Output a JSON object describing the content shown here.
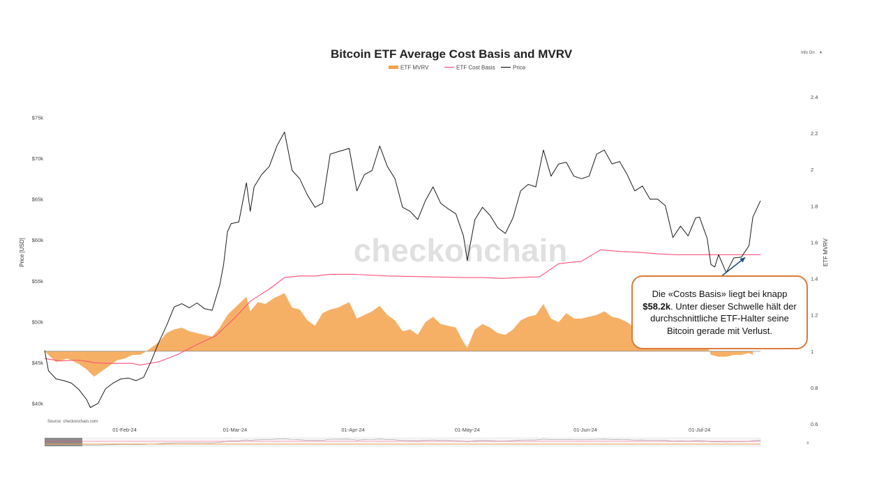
{
  "chart_data": {
    "type": "line",
    "title": "Bitcoin ETF Average Cost Basis and MVRV",
    "legend": {
      "placement": "top-center",
      "entries": [
        {
          "name": "ETF MVRV",
          "color": "#f5a24b"
        },
        {
          "name": "ETF Cost Basis",
          "color": "#ff4f79"
        },
        {
          "name": "Price",
          "color": "#1a1a1a"
        }
      ]
    },
    "menu_label": "Info On",
    "watermark": "checkonchain",
    "source": "Source: checkonchain.com",
    "x_axis": {
      "type": "date",
      "range": [
        "2024-01-11",
        "2024-07-17"
      ],
      "ticks": [
        {
          "date": "2024-02-01",
          "label": "01-Feb-24"
        },
        {
          "date": "2024-03-01",
          "label": "01-Mar-24"
        },
        {
          "date": "2024-04-01",
          "label": "01-Apr-24"
        },
        {
          "date": "2024-05-01",
          "label": "01-May-24"
        },
        {
          "date": "2024-06-01",
          "label": "01-Jun-24"
        },
        {
          "date": "2024-07-01",
          "label": "01-Jul-24"
        }
      ]
    },
    "y_left": {
      "label": "Price [USD]",
      "range": [
        37500,
        77500
      ],
      "ticks": [
        {
          "value": 40000,
          "label": "$40k"
        },
        {
          "value": 45000,
          "label": "$45k"
        },
        {
          "value": 50000,
          "label": "$50k"
        },
        {
          "value": 55000,
          "label": "$55k"
        },
        {
          "value": 60000,
          "label": "$60k"
        },
        {
          "value": 65000,
          "label": "$65k"
        },
        {
          "value": 70000,
          "label": "$70k"
        },
        {
          "value": 75000,
          "label": "$75k"
        }
      ]
    },
    "y_right": {
      "label": "ETF MVRV",
      "range": [
        0.6,
        2.4
      ],
      "ticks": [
        {
          "value": 0.6,
          "label": "0.6"
        },
        {
          "value": 0.8,
          "label": "0.8"
        },
        {
          "value": 1.0,
          "label": "1"
        },
        {
          "value": 1.2,
          "label": "1.2"
        },
        {
          "value": 1.4,
          "label": "1.4"
        },
        {
          "value": 1.6,
          "label": "1.6"
        },
        {
          "value": 1.8,
          "label": "1.8"
        },
        {
          "value": 2.0,
          "label": "2"
        },
        {
          "value": 2.2,
          "label": "2.2"
        },
        {
          "value": 2.4,
          "label": "2.4"
        }
      ]
    },
    "series": [
      {
        "name": "Price",
        "axis": "left",
        "points": [
          [
            "2024-01-11",
            46500
          ],
          [
            "2024-01-12",
            44000
          ],
          [
            "2024-01-14",
            43000
          ],
          [
            "2024-01-16",
            42800
          ],
          [
            "2024-01-18",
            42500
          ],
          [
            "2024-01-20",
            41700
          ],
          [
            "2024-01-22",
            40500
          ],
          [
            "2024-01-23",
            39500
          ],
          [
            "2024-01-25",
            40000
          ],
          [
            "2024-01-27",
            41800
          ],
          [
            "2024-01-29",
            42500
          ],
          [
            "2024-01-31",
            43000
          ],
          [
            "2024-02-02",
            43100
          ],
          [
            "2024-02-04",
            42800
          ],
          [
            "2024-02-06",
            43200
          ],
          [
            "2024-02-08",
            45200
          ],
          [
            "2024-02-10",
            47500
          ],
          [
            "2024-02-12",
            49500
          ],
          [
            "2024-02-14",
            51800
          ],
          [
            "2024-02-16",
            52200
          ],
          [
            "2024-02-18",
            51700
          ],
          [
            "2024-02-20",
            52300
          ],
          [
            "2024-02-22",
            51600
          ],
          [
            "2024-02-24",
            51400
          ],
          [
            "2024-02-26",
            54500
          ],
          [
            "2024-02-27",
            57000
          ],
          [
            "2024-02-28",
            61000
          ],
          [
            "2024-02-29",
            62000
          ],
          [
            "2024-03-02",
            62200
          ],
          [
            "2024-03-04",
            67000
          ],
          [
            "2024-03-05",
            63500
          ],
          [
            "2024-03-06",
            66500
          ],
          [
            "2024-03-08",
            68000
          ],
          [
            "2024-03-10",
            69000
          ],
          [
            "2024-03-12",
            71500
          ],
          [
            "2024-03-14",
            73200
          ],
          [
            "2024-03-16",
            68500
          ],
          [
            "2024-03-18",
            67500
          ],
          [
            "2024-03-20",
            65500
          ],
          [
            "2024-03-22",
            64000
          ],
          [
            "2024-03-24",
            64500
          ],
          [
            "2024-03-26",
            70500
          ],
          [
            "2024-03-28",
            70800
          ],
          [
            "2024-03-31",
            71200
          ],
          [
            "2024-04-02",
            66000
          ],
          [
            "2024-04-04",
            68000
          ],
          [
            "2024-04-06",
            68500
          ],
          [
            "2024-04-08",
            71500
          ],
          [
            "2024-04-10",
            69000
          ],
          [
            "2024-04-12",
            67500
          ],
          [
            "2024-04-14",
            64000
          ],
          [
            "2024-04-16",
            63500
          ],
          [
            "2024-04-18",
            62500
          ],
          [
            "2024-04-20",
            64800
          ],
          [
            "2024-04-22",
            66500
          ],
          [
            "2024-04-24",
            64500
          ],
          [
            "2024-04-26",
            63800
          ],
          [
            "2024-04-28",
            63200
          ],
          [
            "2024-04-30",
            60500
          ],
          [
            "2024-05-01",
            57500
          ],
          [
            "2024-05-03",
            62500
          ],
          [
            "2024-05-05",
            64000
          ],
          [
            "2024-05-07",
            63000
          ],
          [
            "2024-05-09",
            61500
          ],
          [
            "2024-05-11",
            60800
          ],
          [
            "2024-05-13",
            62700
          ],
          [
            "2024-05-15",
            66000
          ],
          [
            "2024-05-17",
            66800
          ],
          [
            "2024-05-19",
            66500
          ],
          [
            "2024-05-21",
            71000
          ],
          [
            "2024-05-23",
            67800
          ],
          [
            "2024-05-25",
            69300
          ],
          [
            "2024-05-27",
            69500
          ],
          [
            "2024-05-29",
            67800
          ],
          [
            "2024-05-31",
            67500
          ],
          [
            "2024-06-02",
            67800
          ],
          [
            "2024-06-04",
            70500
          ],
          [
            "2024-06-06",
            71000
          ],
          [
            "2024-06-08",
            69300
          ],
          [
            "2024-06-10",
            69600
          ],
          [
            "2024-06-12",
            68000
          ],
          [
            "2024-06-14",
            66000
          ],
          [
            "2024-06-16",
            66600
          ],
          [
            "2024-06-18",
            65000
          ],
          [
            "2024-06-20",
            65000
          ],
          [
            "2024-06-22",
            64200
          ],
          [
            "2024-06-24",
            60300
          ],
          [
            "2024-06-26",
            61700
          ],
          [
            "2024-06-28",
            60500
          ],
          [
            "2024-06-30",
            62700
          ],
          [
            "2024-07-01",
            62800
          ],
          [
            "2024-07-03",
            60200
          ],
          [
            "2024-07-04",
            57000
          ],
          [
            "2024-07-05",
            56700
          ],
          [
            "2024-07-06",
            58200
          ],
          [
            "2024-07-08",
            56000
          ],
          [
            "2024-07-10",
            57800
          ],
          [
            "2024-07-12",
            57900
          ],
          [
            "2024-07-14",
            59300
          ],
          [
            "2024-07-15",
            62800
          ],
          [
            "2024-07-17",
            64800
          ]
        ]
      },
      {
        "name": "ETF Cost Basis",
        "axis": "left",
        "points": [
          [
            "2024-01-11",
            45500
          ],
          [
            "2024-01-15",
            45200
          ],
          [
            "2024-01-20",
            45300
          ],
          [
            "2024-01-24",
            45000
          ],
          [
            "2024-01-27",
            44900
          ],
          [
            "2024-02-03",
            44900
          ],
          [
            "2024-02-05",
            44700
          ],
          [
            "2024-02-10",
            45100
          ],
          [
            "2024-02-15",
            46000
          ],
          [
            "2024-02-20",
            47200
          ],
          [
            "2024-02-25",
            48300
          ],
          [
            "2024-03-01",
            50500
          ],
          [
            "2024-03-05",
            52500
          ],
          [
            "2024-03-10",
            54000
          ],
          [
            "2024-03-14",
            55400
          ],
          [
            "2024-03-18",
            55600
          ],
          [
            "2024-03-22",
            55600
          ],
          [
            "2024-03-26",
            55800
          ],
          [
            "2024-04-01",
            55800
          ],
          [
            "2024-04-10",
            55600
          ],
          [
            "2024-04-20",
            55500
          ],
          [
            "2024-04-30",
            55400
          ],
          [
            "2024-05-05",
            55400
          ],
          [
            "2024-05-10",
            55300
          ],
          [
            "2024-05-15",
            55400
          ],
          [
            "2024-05-20",
            55500
          ],
          [
            "2024-05-25",
            57100
          ],
          [
            "2024-05-31",
            57400
          ],
          [
            "2024-06-05",
            58800
          ],
          [
            "2024-06-10",
            58600
          ],
          [
            "2024-06-15",
            58500
          ],
          [
            "2024-06-20",
            58300
          ],
          [
            "2024-06-25",
            58200
          ],
          [
            "2024-07-01",
            58200
          ],
          [
            "2024-07-10",
            58200
          ],
          [
            "2024-07-17",
            58200
          ]
        ]
      },
      {
        "name": "ETF MVRV",
        "axis": "right",
        "points": [
          [
            "2024-01-11",
            1.0
          ],
          [
            "2024-01-14",
            0.94
          ],
          [
            "2024-01-17",
            0.96
          ],
          [
            "2024-01-20",
            0.93
          ],
          [
            "2024-01-22",
            0.9
          ],
          [
            "2024-01-24",
            0.86
          ],
          [
            "2024-01-26",
            0.89
          ],
          [
            "2024-01-28",
            0.92
          ],
          [
            "2024-01-30",
            0.95
          ],
          [
            "2024-02-01",
            0.96
          ],
          [
            "2024-02-03",
            0.98
          ],
          [
            "2024-02-05",
            0.98
          ],
          [
            "2024-02-06",
            0.99
          ],
          [
            "2024-02-08",
            1.02
          ],
          [
            "2024-02-10",
            1.05
          ],
          [
            "2024-02-12",
            1.1
          ],
          [
            "2024-02-14",
            1.12
          ],
          [
            "2024-02-16",
            1.13
          ],
          [
            "2024-02-18",
            1.11
          ],
          [
            "2024-02-20",
            1.1
          ],
          [
            "2024-02-22",
            1.09
          ],
          [
            "2024-02-24",
            1.08
          ],
          [
            "2024-02-26",
            1.13
          ],
          [
            "2024-02-28",
            1.2
          ],
          [
            "2024-03-01",
            1.24
          ],
          [
            "2024-03-04",
            1.3
          ],
          [
            "2024-03-05",
            1.22
          ],
          [
            "2024-03-07",
            1.27
          ],
          [
            "2024-03-09",
            1.26
          ],
          [
            "2024-03-11",
            1.29
          ],
          [
            "2024-03-14",
            1.32
          ],
          [
            "2024-03-16",
            1.24
          ],
          [
            "2024-03-18",
            1.23
          ],
          [
            "2024-03-20",
            1.17
          ],
          [
            "2024-03-22",
            1.14
          ],
          [
            "2024-03-24",
            1.21
          ],
          [
            "2024-03-26",
            1.23
          ],
          [
            "2024-03-28",
            1.24
          ],
          [
            "2024-03-31",
            1.27
          ],
          [
            "2024-04-02",
            1.18
          ],
          [
            "2024-04-04",
            1.2
          ],
          [
            "2024-04-06",
            1.22
          ],
          [
            "2024-04-08",
            1.25
          ],
          [
            "2024-04-10",
            1.2
          ],
          [
            "2024-04-12",
            1.17
          ],
          [
            "2024-04-14",
            1.11
          ],
          [
            "2024-04-16",
            1.12
          ],
          [
            "2024-04-18",
            1.09
          ],
          [
            "2024-04-20",
            1.16
          ],
          [
            "2024-04-22",
            1.19
          ],
          [
            "2024-04-24",
            1.15
          ],
          [
            "2024-04-26",
            1.14
          ],
          [
            "2024-04-28",
            1.13
          ],
          [
            "2024-04-30",
            1.05
          ],
          [
            "2024-05-01",
            1.02
          ],
          [
            "2024-05-03",
            1.12
          ],
          [
            "2024-05-05",
            1.15
          ],
          [
            "2024-05-07",
            1.13
          ],
          [
            "2024-05-09",
            1.1
          ],
          [
            "2024-05-11",
            1.09
          ],
          [
            "2024-05-13",
            1.12
          ],
          [
            "2024-05-15",
            1.17
          ],
          [
            "2024-05-17",
            1.19
          ],
          [
            "2024-05-19",
            1.2
          ],
          [
            "2024-05-21",
            1.26
          ],
          [
            "2024-05-23",
            1.18
          ],
          [
            "2024-05-25",
            1.16
          ],
          [
            "2024-05-27",
            1.21
          ],
          [
            "2024-05-29",
            1.18
          ],
          [
            "2024-05-31",
            1.18
          ],
          [
            "2024-06-02",
            1.19
          ],
          [
            "2024-06-04",
            1.2
          ],
          [
            "2024-06-06",
            1.22
          ],
          [
            "2024-06-08",
            1.19
          ],
          [
            "2024-06-10",
            1.18
          ],
          [
            "2024-06-12",
            1.16
          ],
          [
            "2024-06-14",
            1.13
          ],
          [
            "2024-06-16",
            1.13
          ],
          [
            "2024-06-18",
            1.11
          ],
          [
            "2024-06-20",
            1.12
          ],
          [
            "2024-06-22",
            1.1
          ],
          [
            "2024-06-24",
            1.04
          ],
          [
            "2024-06-26",
            1.06
          ],
          [
            "2024-06-28",
            1.04
          ],
          [
            "2024-06-30",
            1.08
          ],
          [
            "2024-07-01",
            1.08
          ],
          [
            "2024-07-03",
            1.03
          ],
          [
            "2024-07-04",
            0.98
          ],
          [
            "2024-07-06",
            0.97
          ],
          [
            "2024-07-08",
            0.97
          ],
          [
            "2024-07-10",
            0.98
          ],
          [
            "2024-07-12",
            0.98
          ],
          [
            "2024-07-14",
            0.99
          ],
          [
            "2024-07-15",
            0.98
          ]
        ]
      }
    ],
    "annotation": {
      "text_before": "Die «Costs Basis» liegt bei knapp",
      "bold": "$58.2k",
      "text_after": ". Unter dieser Schwelle hält der durchschnittliche ETF-Halter seine Bitcoin gerade mit Verlust.",
      "arrow_color": "#1f4e79",
      "border_color": "#d97a3a"
    }
  }
}
